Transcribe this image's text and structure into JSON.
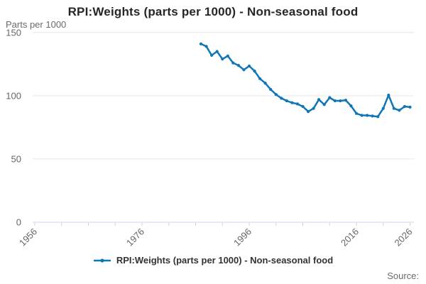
{
  "header": {
    "title": "RPI:Weights (parts per 1000) - Non-seasonal food"
  },
  "y_axis": {
    "unit_label": "Parts per 1000",
    "tick_labels": [
      "0",
      "50",
      "100",
      "150"
    ]
  },
  "x_axis": {
    "labeled_ticks": [
      "1956",
      "1976",
      "1996",
      "2016",
      "2026"
    ]
  },
  "legend": {
    "label": "RPI:Weights (parts per 1000) - Non-seasonal food"
  },
  "footer": {
    "source_label": "Source:"
  },
  "colors": {
    "line": "#1076b6",
    "grid": "#e6e6e6",
    "axis": "#ccd6eb",
    "tick_text": "#666666",
    "title_text": "#262626",
    "legend_text": "#333333"
  },
  "chart_data": {
    "type": "line",
    "title": "RPI:Weights (parts per 1000) - Non-seasonal food",
    "ylabel": "Parts per 1000",
    "ylim": [
      0,
      150
    ],
    "y_ticks": [
      0,
      50,
      100,
      150
    ],
    "x_tick_range": {
      "start": 1956,
      "end": 2026,
      "step": 5
    },
    "x_labeled_ticks": [
      1956,
      1976,
      1996,
      2016,
      2026
    ],
    "grid": true,
    "legend_position": "bottom",
    "x": [
      1987,
      1988,
      1989,
      1990,
      1991,
      1992,
      1993,
      1994,
      1995,
      1996,
      1997,
      1998,
      1999,
      2000,
      2001,
      2002,
      2003,
      2004,
      2005,
      2006,
      2007,
      2008,
      2009,
      2010,
      2011,
      2012,
      2013,
      2014,
      2015,
      2016,
      2017,
      2018,
      2019,
      2020,
      2021,
      2022,
      2023,
      2024,
      2025,
      2026
    ],
    "series": [
      {
        "name": "RPI:Weights (parts per 1000) - Non-seasonal food",
        "values": [
          141,
          139,
          132,
          135,
          129,
          131.5,
          126,
          124,
          120.5,
          123.5,
          119.5,
          113.5,
          110,
          105,
          101,
          98,
          96,
          94.5,
          93.5,
          91.5,
          87.5,
          90,
          97,
          93,
          98.5,
          96,
          96,
          96.5,
          92,
          86,
          84.5,
          84.5,
          84,
          83.5,
          90,
          100.5,
          90,
          88.5,
          91.5,
          91
        ]
      }
    ]
  }
}
